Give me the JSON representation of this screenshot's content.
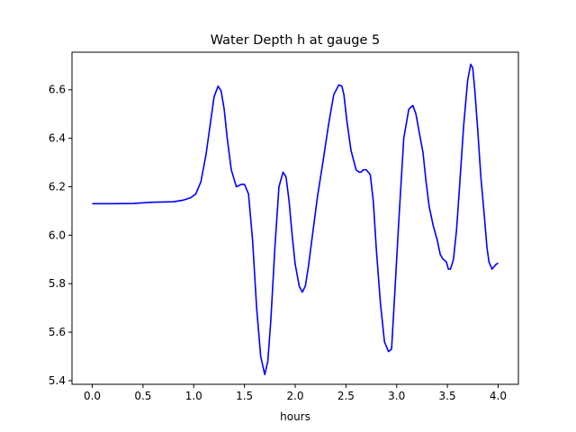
{
  "chart_data": {
    "type": "line",
    "title": "Water Depth h at gauge 5",
    "xlabel": "hours",
    "ylabel": "",
    "xlim": [
      -0.2,
      4.2
    ],
    "ylim": [
      5.385,
      6.755
    ],
    "xticks": [
      0.0,
      0.5,
      1.0,
      1.5,
      2.0,
      2.5,
      3.0,
      3.5,
      4.0
    ],
    "xtick_labels": [
      "0.0",
      "0.5",
      "1.0",
      "1.5",
      "2.0",
      "2.5",
      "3.0",
      "3.5",
      "4.0"
    ],
    "yticks": [
      5.4,
      5.6,
      5.8,
      6.0,
      6.2,
      6.4,
      6.6
    ],
    "ytick_labels": [
      "5.4",
      "5.6",
      "5.8",
      "6.0",
      "6.2",
      "6.4",
      "6.6"
    ],
    "grid": false,
    "series": [
      {
        "color": "#0000ff",
        "x": [
          0.0,
          0.2,
          0.4,
          0.6,
          0.8,
          0.9,
          0.97,
          1.02,
          1.07,
          1.12,
          1.17,
          1.2,
          1.24,
          1.27,
          1.3,
          1.33,
          1.37,
          1.42,
          1.47,
          1.5,
          1.54,
          1.58,
          1.62,
          1.66,
          1.7,
          1.73,
          1.76,
          1.8,
          1.84,
          1.88,
          1.91,
          1.94,
          1.97,
          2.0,
          2.04,
          2.07,
          2.1,
          2.13,
          2.17,
          2.22,
          2.28,
          2.33,
          2.38,
          2.43,
          2.46,
          2.48,
          2.51,
          2.55,
          2.6,
          2.63,
          2.65,
          2.67,
          2.7,
          2.74,
          2.77,
          2.8,
          2.84,
          2.88,
          2.92,
          2.95,
          2.98,
          3.02,
          3.07,
          3.12,
          3.16,
          3.19,
          3.22,
          3.26,
          3.29,
          3.32,
          3.36,
          3.4,
          3.43,
          3.46,
          3.49,
          3.51,
          3.53,
          3.56,
          3.59,
          3.62,
          3.66,
          3.7,
          3.73,
          3.75,
          3.77,
          3.8,
          3.83,
          3.86,
          3.89,
          3.91,
          3.94,
          3.96,
          3.98,
          4.0
        ],
        "y": [
          6.13,
          6.13,
          6.131,
          6.136,
          6.138,
          6.145,
          6.155,
          6.17,
          6.22,
          6.33,
          6.48,
          6.57,
          6.615,
          6.595,
          6.52,
          6.4,
          6.27,
          6.2,
          6.21,
          6.21,
          6.17,
          5.98,
          5.7,
          5.5,
          5.425,
          5.48,
          5.65,
          5.95,
          6.2,
          6.26,
          6.24,
          6.14,
          6.0,
          5.88,
          5.79,
          5.765,
          5.79,
          5.87,
          6.0,
          6.16,
          6.32,
          6.46,
          6.58,
          6.62,
          6.615,
          6.58,
          6.47,
          6.35,
          6.27,
          6.26,
          6.26,
          6.27,
          6.27,
          6.25,
          6.14,
          5.94,
          5.72,
          5.56,
          5.52,
          5.53,
          5.75,
          6.05,
          6.4,
          6.52,
          6.535,
          6.5,
          6.43,
          6.34,
          6.22,
          6.12,
          6.04,
          5.98,
          5.92,
          5.9,
          5.89,
          5.86,
          5.86,
          5.9,
          6.02,
          6.2,
          6.45,
          6.64,
          6.705,
          6.69,
          6.6,
          6.43,
          6.24,
          6.1,
          5.95,
          5.89,
          5.86,
          5.87,
          5.88,
          5.885
        ]
      }
    ]
  }
}
